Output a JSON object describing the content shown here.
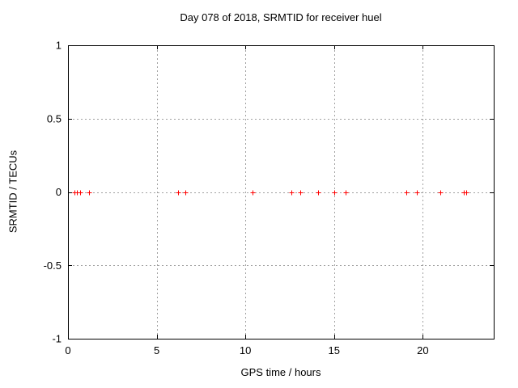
{
  "chart_data": {
    "type": "scatter",
    "title": "Day 078 of 2018, SRMTID for receiver huel",
    "xlabel": "GPS time / hours",
    "ylabel": "SRMTID / TECUs",
    "xlim": [
      0,
      24
    ],
    "ylim": [
      -1,
      1
    ],
    "xticks": [
      0,
      5,
      10,
      15,
      20
    ],
    "xtick_labels": [
      "0",
      "5",
      "10",
      "15",
      "20"
    ],
    "yticks": [
      -1,
      -0.5,
      0,
      0.5,
      1
    ],
    "ytick_labels": [
      "-1",
      "-0.5",
      "0",
      "0.5",
      "1"
    ],
    "grid": true,
    "legend": "none",
    "marker_style": "plus",
    "marker_color": "#ff0000",
    "marker_size": 7,
    "grid_color": "#a0a0a0",
    "axis_color": "#000000",
    "series": [
      {
        "name": "SRMTID",
        "x": [
          0.35,
          0.5,
          0.7,
          1.2,
          6.2,
          6.6,
          10.4,
          12.6,
          13.1,
          14.1,
          15.0,
          15.65,
          19.05,
          19.65,
          21.0,
          22.3,
          22.45
        ],
        "y": [
          0,
          0,
          0,
          0,
          0,
          0,
          0,
          0,
          0,
          0,
          0,
          0,
          0,
          0,
          0,
          0,
          0
        ]
      }
    ]
  }
}
